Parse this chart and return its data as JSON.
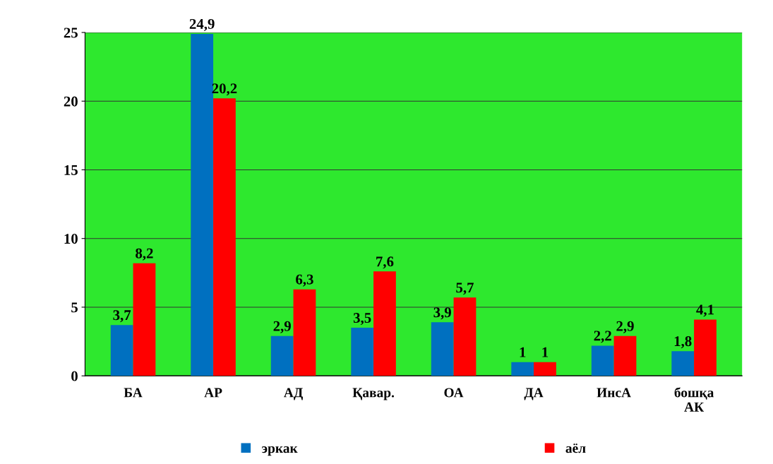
{
  "chart_data": {
    "type": "bar",
    "categories": [
      "БА",
      "АР",
      "АД",
      "Қавар.",
      "ОА",
      "ДА",
      "ИнсА",
      "бошқа\nАК"
    ],
    "series": [
      {
        "name": "эркак",
        "color": "#0070c0",
        "values": [
          3.7,
          24.9,
          2.9,
          3.5,
          3.9,
          1,
          2.2,
          1.8
        ],
        "value_labels": [
          "3,7",
          "24,9",
          "2,9",
          "3,5",
          "3,9",
          "1",
          "2,2",
          "1,8"
        ]
      },
      {
        "name": "аёл",
        "color": "#ff0000",
        "values": [
          8.2,
          20.2,
          6.3,
          7.6,
          5.7,
          1,
          2.9,
          4.1
        ],
        "value_labels": [
          "8,2",
          "20,2",
          "6,3",
          "7,6",
          "5,7",
          "1",
          "2,9",
          "4,1"
        ]
      }
    ],
    "ylim": [
      0,
      25
    ],
    "yticks": [
      0,
      5,
      10,
      15,
      20,
      25
    ],
    "grid": "y",
    "legend": "bottom"
  }
}
